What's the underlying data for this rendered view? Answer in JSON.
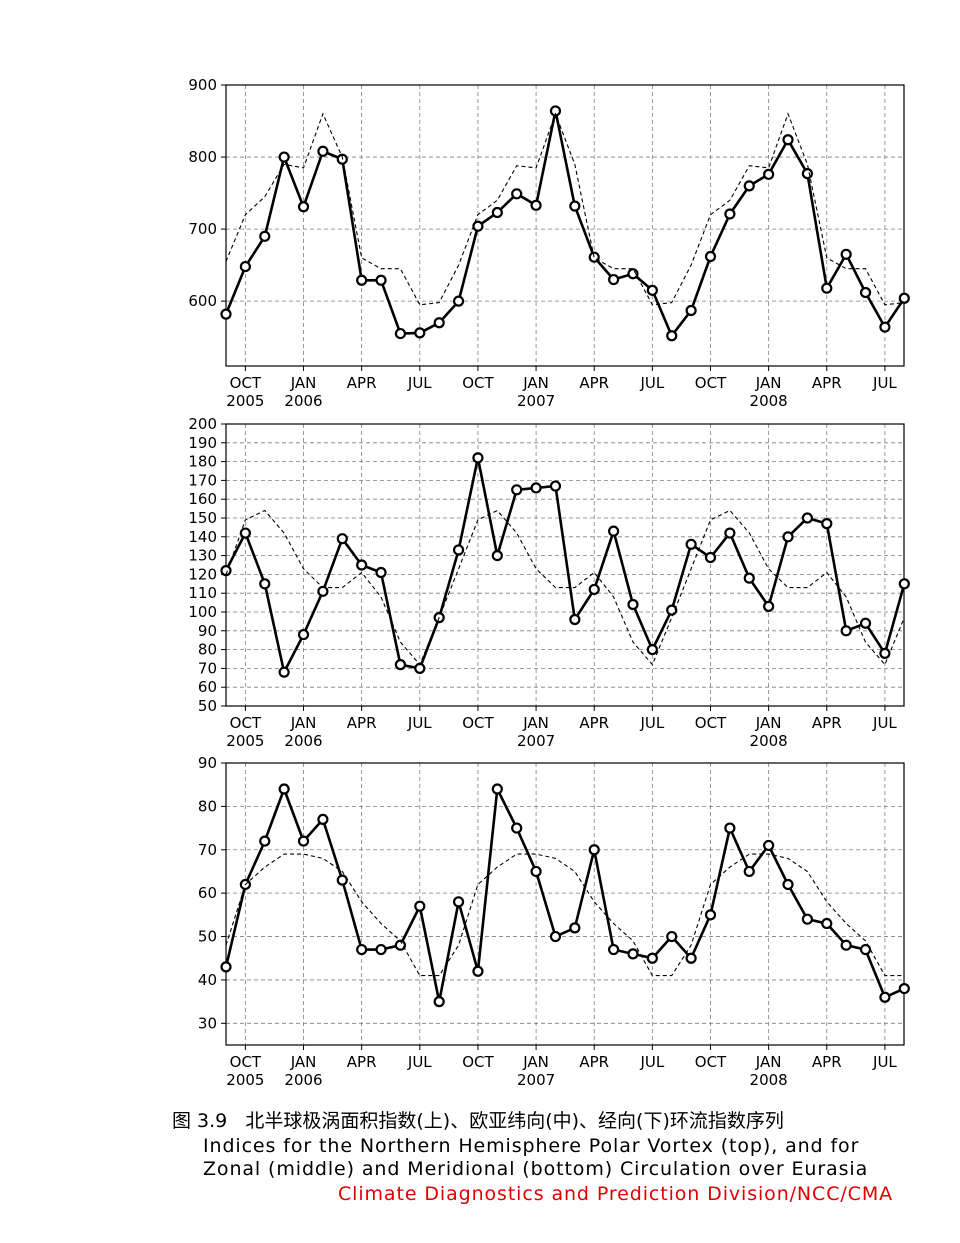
{
  "chart_data": [
    {
      "type": "line",
      "title": "",
      "ylim": [
        510,
        900
      ],
      "yticks": [
        600,
        700,
        800,
        900
      ],
      "x_months": [
        "2005-09",
        "2005-10",
        "2005-11",
        "2005-12",
        "2006-01",
        "2006-02",
        "2006-03",
        "2006-04",
        "2006-05",
        "2006-06",
        "2006-07",
        "2006-08",
        "2006-09",
        "2006-10",
        "2006-11",
        "2006-12",
        "2007-01",
        "2007-02",
        "2007-03",
        "2007-04",
        "2007-05",
        "2007-06",
        "2007-07",
        "2007-08",
        "2007-09",
        "2007-10",
        "2007-11",
        "2007-12",
        "2008-01",
        "2008-02",
        "2008-03",
        "2008-04",
        "2008-05",
        "2008-06",
        "2008-07",
        "2008-08"
      ],
      "grid": true,
      "series": [
        {
          "style": "solid-markers",
          "values": [
            582,
            648,
            690,
            800,
            731,
            808,
            797,
            629,
            629,
            555,
            556,
            570,
            600,
            704,
            723,
            749,
            733,
            864,
            732,
            661,
            630,
            638,
            615,
            552,
            587,
            662,
            721,
            760,
            776,
            824,
            777,
            618,
            665,
            612,
            564,
            604
          ]
        },
        {
          "style": "dashed",
          "values": [
            655,
            720,
            745,
            790,
            785,
            860,
            800,
            660,
            645,
            645,
            595,
            598,
            650,
            720,
            740,
            788,
            785,
            860,
            790,
            660,
            645,
            645,
            595,
            598,
            650,
            720,
            740,
            788,
            785,
            860,
            790,
            660,
            645,
            645,
            595,
            598
          ]
        }
      ]
    },
    {
      "type": "line",
      "title": "",
      "ylim": [
        50,
        200
      ],
      "yticks": [
        50,
        60,
        70,
        80,
        90,
        100,
        110,
        120,
        130,
        140,
        150,
        160,
        170,
        180,
        190,
        200
      ],
      "x_months": [
        "2005-09",
        "2005-10",
        "2005-11",
        "2005-12",
        "2006-01",
        "2006-02",
        "2006-03",
        "2006-04",
        "2006-05",
        "2006-06",
        "2006-07",
        "2006-08",
        "2006-09",
        "2006-10",
        "2006-11",
        "2006-12",
        "2007-01",
        "2007-02",
        "2007-03",
        "2007-04",
        "2007-05",
        "2007-06",
        "2007-07",
        "2007-08",
        "2007-09",
        "2007-10",
        "2007-11",
        "2007-12",
        "2008-01",
        "2008-02",
        "2008-03",
        "2008-04",
        "2008-05",
        "2008-06",
        "2008-07",
        "2008-08"
      ],
      "grid": true,
      "series": [
        {
          "style": "solid-markers",
          "values": [
            122,
            142,
            115,
            68,
            88,
            111,
            139,
            125,
            121,
            72,
            70,
            97,
            133,
            182,
            130,
            165,
            166,
            167,
            96,
            112,
            143,
            104,
            80,
            101,
            136,
            129,
            142,
            118,
            103,
            140,
            150,
            147,
            90,
            94,
            78,
            115
          ]
        },
        {
          "style": "dashed",
          "values": [
            120,
            149,
            154,
            142,
            123,
            113,
            113,
            121,
            108,
            84,
            72,
            97,
            123,
            149,
            154,
            142,
            123,
            113,
            113,
            121,
            108,
            84,
            72,
            97,
            123,
            149,
            154,
            142,
            123,
            113,
            113,
            121,
            108,
            84,
            72,
            97
          ]
        }
      ]
    },
    {
      "type": "line",
      "title": "",
      "ylim": [
        25,
        90
      ],
      "yticks": [
        30,
        40,
        50,
        60,
        70,
        80,
        90
      ],
      "x_months": [
        "2005-09",
        "2005-10",
        "2005-11",
        "2005-12",
        "2006-01",
        "2006-02",
        "2006-03",
        "2006-04",
        "2006-05",
        "2006-06",
        "2006-07",
        "2006-08",
        "2006-09",
        "2006-10",
        "2006-11",
        "2006-12",
        "2007-01",
        "2007-02",
        "2007-03",
        "2007-04",
        "2007-05",
        "2007-06",
        "2007-07",
        "2007-08",
        "2007-09",
        "2007-10",
        "2007-11",
        "2007-12",
        "2008-01",
        "2008-02",
        "2008-03",
        "2008-04",
        "2008-05",
        "2008-06",
        "2008-07",
        "2008-08"
      ],
      "grid": true,
      "series": [
        {
          "style": "solid-markers",
          "values": [
            43,
            62,
            72,
            84,
            72,
            77,
            63,
            47,
            47,
            48,
            57,
            35,
            58,
            42,
            84,
            75,
            65,
            50,
            52,
            70,
            47,
            46,
            45,
            50,
            45,
            55,
            75,
            65,
            71,
            62,
            54,
            53,
            48,
            47,
            36,
            38
          ]
        },
        {
          "style": "dashed",
          "values": [
            48,
            62,
            66,
            69,
            69,
            68,
            65,
            58,
            53,
            49,
            41,
            41,
            48,
            62,
            66,
            69,
            69,
            68,
            65,
            58,
            53,
            49,
            41,
            41,
            48,
            62,
            66,
            69,
            69,
            68,
            65,
            58,
            53,
            49,
            41,
            41
          ]
        }
      ]
    }
  ],
  "x_axis": {
    "ticks": [
      {
        "month_index": 1,
        "label": "OCT",
        "year": "2005"
      },
      {
        "month_index": 4,
        "label": "JAN",
        "year": "2006"
      },
      {
        "month_index": 7,
        "label": "APR",
        "year": ""
      },
      {
        "month_index": 10,
        "label": "JUL",
        "year": ""
      },
      {
        "month_index": 13,
        "label": "OCT",
        "year": ""
      },
      {
        "month_index": 16,
        "label": "JAN",
        "year": "2007"
      },
      {
        "month_index": 19,
        "label": "APR",
        "year": ""
      },
      {
        "month_index": 22,
        "label": "JUL",
        "year": ""
      },
      {
        "month_index": 25,
        "label": "OCT",
        "year": ""
      },
      {
        "month_index": 28,
        "label": "JAN",
        "year": "2008"
      },
      {
        "month_index": 31,
        "label": "APR",
        "year": ""
      },
      {
        "month_index": 34,
        "label": "JUL",
        "year": ""
      }
    ]
  },
  "caption": {
    "chinese": "图 3.9   北半球极涡面积指数(上)、欧亚纬向(中)、经向(下)环流指数序列",
    "english_line1": "Indices for the Northern Hemisphere Polar Vortex (top), and for",
    "english_line2": "Zonal (middle) and Meridional (bottom) Circulation over Eurasia",
    "credit": "Climate Diagnostics and Prediction Division/NCC/CMA"
  },
  "colors": {
    "line": "#000000",
    "grid": "#7f7f7f",
    "credit": "#e00000",
    "background": "#ffffff"
  }
}
